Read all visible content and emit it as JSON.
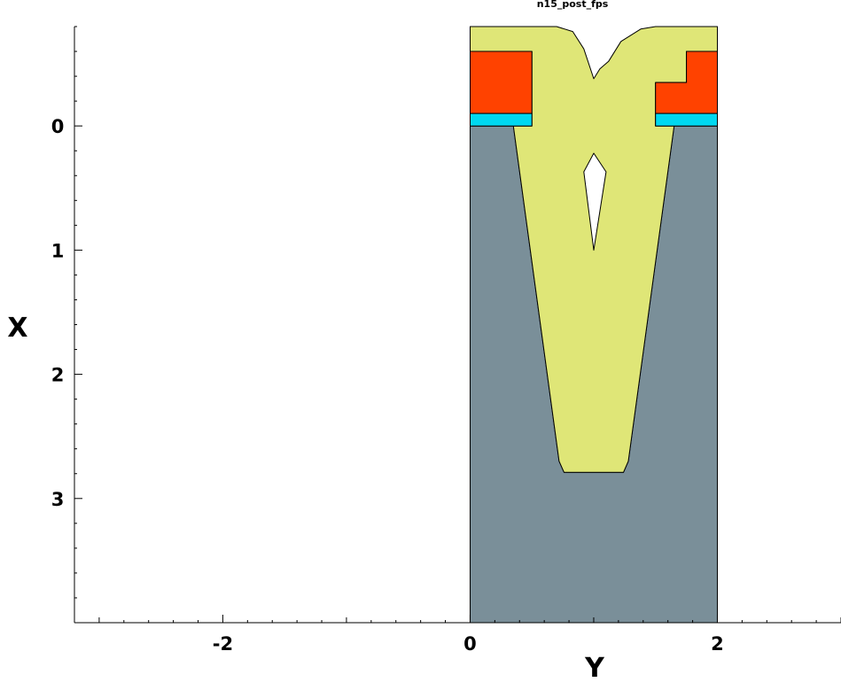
{
  "title": "n15_post_fps",
  "axes": {
    "x_label": "Y",
    "y_label": "X",
    "x_range": [
      -3.2,
      3.0
    ],
    "y_range": [
      -0.8,
      4.0
    ],
    "x_ticks": [
      {
        "value": -2,
        "label": "-2"
      },
      {
        "value": 0,
        "label": "0"
      },
      {
        "value": 2,
        "label": "2"
      }
    ],
    "y_ticks": [
      {
        "value": 0,
        "label": "0"
      },
      {
        "value": 1,
        "label": "1"
      },
      {
        "value": 2,
        "label": "2"
      },
      {
        "value": 3,
        "label": "3"
      }
    ],
    "y_inverted": true
  },
  "colors": {
    "silicon": "#7a8f99",
    "oxide": "#dfe677",
    "nitride": "#ff4200",
    "pad_oxide": "#00d8f0",
    "void": "#ffffff",
    "outline": "#000000"
  },
  "chart_data": {
    "type": "structure-cross-section",
    "regions": [
      {
        "material": "silicon",
        "color": "#7a8f99",
        "points": [
          [
            0,
            0
          ],
          [
            0.35,
            0
          ],
          [
            0.72,
            2.7
          ],
          [
            0.76,
            2.79
          ],
          [
            1.24,
            2.79
          ],
          [
            1.28,
            2.7
          ],
          [
            1.65,
            0
          ],
          [
            2,
            0
          ],
          [
            2,
            4
          ],
          [
            0,
            4
          ]
        ]
      },
      {
        "material": "oxide",
        "color": "#dfe677",
        "points": [
          [
            0,
            -0.8
          ],
          [
            0.7,
            -0.8
          ],
          [
            0.83,
            -0.76
          ],
          [
            0.92,
            -0.62
          ],
          [
            1.0,
            -0.38
          ],
          [
            1.05,
            -0.46
          ],
          [
            1.12,
            -0.52
          ],
          [
            1.22,
            -0.68
          ],
          [
            1.38,
            -0.78
          ],
          [
            1.5,
            -0.8
          ],
          [
            2,
            -0.8
          ],
          [
            2,
            -0.6
          ],
          [
            1.75,
            -0.6
          ],
          [
            1.75,
            -0.35
          ],
          [
            1.5,
            -0.35
          ],
          [
            1.5,
            0
          ],
          [
            1.65,
            0
          ],
          [
            1.28,
            2.7
          ],
          [
            1.24,
            2.79
          ],
          [
            0.76,
            2.79
          ],
          [
            0.72,
            2.7
          ],
          [
            0.35,
            0
          ],
          [
            0.5,
            0
          ],
          [
            0.5,
            -0.6
          ],
          [
            0,
            -0.6
          ]
        ]
      },
      {
        "material": "nitride",
        "color": "#ff4200",
        "points": [
          [
            0,
            -0.6
          ],
          [
            0.5,
            -0.6
          ],
          [
            0.5,
            -0.1
          ],
          [
            0,
            -0.1
          ]
        ]
      },
      {
        "material": "nitride",
        "color": "#ff4200",
        "points": [
          [
            1.75,
            -0.6
          ],
          [
            2,
            -0.6
          ],
          [
            2,
            -0.1
          ],
          [
            1.5,
            -0.1
          ],
          [
            1.5,
            -0.35
          ],
          [
            1.75,
            -0.35
          ]
        ]
      },
      {
        "material": "pad_oxide",
        "color": "#00d8f0",
        "points": [
          [
            0,
            -0.1
          ],
          [
            0.5,
            -0.1
          ],
          [
            0.5,
            0
          ],
          [
            0,
            0
          ]
        ]
      },
      {
        "material": "pad_oxide",
        "color": "#00d8f0",
        "points": [
          [
            1.5,
            -0.1
          ],
          [
            2,
            -0.1
          ],
          [
            2,
            0
          ],
          [
            1.5,
            0
          ]
        ]
      },
      {
        "material": "void",
        "color": "#ffffff",
        "points": [
          [
            1.0,
            0.22
          ],
          [
            1.1,
            0.37
          ],
          [
            1.0,
            1.0
          ],
          [
            0.92,
            0.37
          ]
        ]
      }
    ]
  }
}
